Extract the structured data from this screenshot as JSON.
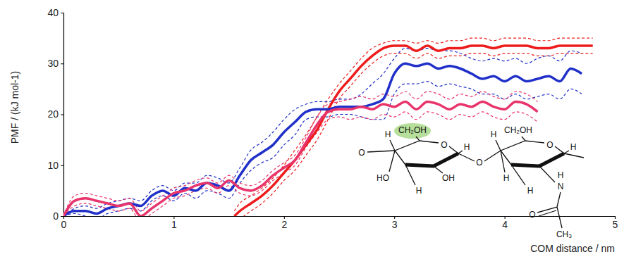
{
  "chart_data": {
    "type": "line",
    "xlabel": "COM distance / nm",
    "ylabel": "PMF / (kJ mol-1)",
    "xlim": [
      0,
      5
    ],
    "ylim": [
      0,
      40
    ],
    "xticks": [
      0,
      1,
      2,
      3,
      4,
      5
    ],
    "yticks": [
      0,
      10,
      20,
      30,
      40
    ],
    "grid": false,
    "series": [
      {
        "color": "#ee1c1c",
        "line_style": "solid",
        "x": [
          1.55,
          1.6,
          1.7,
          1.8,
          1.9,
          2.0,
          2.1,
          2.2,
          2.3,
          2.4,
          2.5,
          2.6,
          2.7,
          2.8,
          2.9,
          3.0,
          3.1,
          3.2,
          3.3,
          3.4,
          3.5,
          3.6,
          3.7,
          3.8,
          3.9,
          4.0,
          4.1,
          4.2,
          4.3,
          4.4,
          4.5,
          4.6,
          4.7,
          4.8
        ],
        "values": [
          0,
          1,
          2.5,
          4,
          6,
          8.5,
          11,
          14,
          17,
          21,
          24.5,
          27,
          29.5,
          31.5,
          33,
          33.5,
          33.5,
          32.5,
          33.5,
          32.5,
          33,
          33,
          33.5,
          33.5,
          33,
          33.5,
          33.5,
          33.5,
          33,
          33,
          33.5,
          33.5,
          33.5,
          33.5
        ],
        "upper": [
          1,
          2.5,
          4,
          5.5,
          7.5,
          10,
          13,
          16,
          19.5,
          23,
          26,
          28.5,
          31,
          33,
          34,
          34.5,
          34.5,
          34,
          34.5,
          34,
          34.5,
          34.5,
          35,
          35,
          34.5,
          35,
          35,
          35,
          34.5,
          34.5,
          35,
          35,
          35,
          35
        ],
        "lower": [
          -1,
          -0.5,
          1,
          2.5,
          4.5,
          7,
          9,
          12,
          15,
          19,
          23,
          25.5,
          28,
          30,
          31.5,
          32,
          32,
          31,
          32,
          31,
          31.5,
          31.5,
          32,
          32,
          31.5,
          32,
          32,
          32,
          31.5,
          31.5,
          32,
          32,
          32,
          32
        ]
      },
      {
        "color": "#2030c8",
        "line_style": "solid",
        "x": [
          0,
          0.1,
          0.2,
          0.3,
          0.4,
          0.5,
          0.6,
          0.7,
          0.8,
          0.9,
          1.0,
          1.1,
          1.2,
          1.3,
          1.4,
          1.5,
          1.6,
          1.7,
          1.8,
          1.9,
          2.0,
          2.1,
          2.2,
          2.3,
          2.4,
          2.5,
          2.6,
          2.7,
          2.8,
          2.9,
          3.0,
          3.1,
          3.2,
          3.3,
          3.4,
          3.5,
          3.6,
          3.7,
          3.8,
          3.9,
          4.0,
          4.1,
          4.2,
          4.3,
          4.4,
          4.5,
          4.6,
          4.7
        ],
        "values": [
          0,
          1,
          1,
          0.5,
          1.5,
          2,
          2.5,
          2,
          4,
          5,
          4,
          5.5,
          5,
          6.5,
          6,
          5,
          8,
          11,
          12.5,
          14,
          16.5,
          18.5,
          20.5,
          21,
          21,
          21.5,
          21.5,
          21.5,
          22,
          23,
          28,
          30,
          29.5,
          30,
          29,
          29.5,
          29,
          28,
          27,
          27.5,
          26.5,
          27.5,
          26.5,
          27,
          27.5,
          26.5,
          29,
          28
        ],
        "upper": [
          0,
          1.5,
          2,
          1.5,
          2.5,
          3,
          3.5,
          3,
          5,
          6,
          5,
          6.5,
          6.5,
          8,
          7.5,
          6.5,
          9.5,
          13,
          14.5,
          16.5,
          19,
          21,
          22,
          22.5,
          22.5,
          23,
          23,
          24,
          26,
          28,
          31,
          33,
          32.5,
          33,
          32.5,
          32.5,
          32,
          31,
          30.5,
          31,
          30.5,
          31,
          30,
          31,
          31.5,
          30.5,
          32.5,
          32
        ],
        "lower": [
          0,
          0.5,
          0,
          -0.5,
          0.5,
          1,
          1.5,
          1,
          3,
          4,
          3,
          4.5,
          3.5,
          5,
          4.5,
          3.5,
          6.5,
          9,
          10.5,
          11.5,
          14,
          16,
          19,
          19.5,
          19.5,
          20,
          20,
          19.5,
          19,
          19,
          24,
          26,
          26,
          26.5,
          25.5,
          26,
          25.5,
          25,
          24,
          24,
          23,
          24,
          23,
          23.5,
          24,
          23,
          25,
          24
        ]
      },
      {
        "color": "#e8336b",
        "line_style": "solid",
        "x": [
          0,
          0.1,
          0.2,
          0.3,
          0.4,
          0.5,
          0.6,
          0.7,
          0.8,
          0.9,
          1.0,
          1.1,
          1.2,
          1.3,
          1.4,
          1.5,
          1.6,
          1.7,
          1.8,
          1.9,
          2.0,
          2.1,
          2.2,
          2.3,
          2.4,
          2.5,
          2.6,
          2.7,
          2.8,
          2.9,
          3.0,
          3.1,
          3.2,
          3.3,
          3.4,
          3.5,
          3.6,
          3.7,
          3.8,
          3.9,
          4.0,
          4.1,
          4.2,
          4.3
        ],
        "values": [
          0,
          3,
          3.5,
          3,
          2.5,
          2,
          2.5,
          0,
          1.5,
          3,
          4.5,
          5,
          6,
          6.5,
          5.5,
          7,
          5.5,
          5,
          6,
          8,
          9.5,
          11,
          14.5,
          18,
          20.5,
          21,
          21,
          21.5,
          21,
          22,
          21.5,
          22.5,
          21,
          22.5,
          22,
          21,
          22,
          21.5,
          22.5,
          21.5,
          21,
          22.5,
          22,
          20.5
        ],
        "upper": [
          0,
          4,
          4.5,
          4,
          3.5,
          3,
          3.5,
          1,
          2.5,
          4,
          5.5,
          6,
          7,
          7.5,
          6.5,
          8,
          6.5,
          6,
          7,
          9,
          10.5,
          12,
          15.5,
          19.5,
          22,
          22.5,
          23,
          23.5,
          23,
          24,
          23.5,
          24.5,
          23,
          24.5,
          24,
          23,
          24,
          23.5,
          24.5,
          23.5,
          23,
          24.5,
          24,
          22.5
        ],
        "lower": [
          0,
          2,
          2.5,
          2,
          1.5,
          1,
          1.5,
          -1,
          0.5,
          2,
          3.5,
          4,
          5,
          5.5,
          4.5,
          6,
          4.5,
          4,
          5,
          7,
          8.5,
          10,
          13.5,
          16.5,
          19,
          19.5,
          19,
          19.5,
          19,
          20,
          19.5,
          20.5,
          19,
          20.5,
          20,
          19,
          20,
          19.5,
          20.5,
          19.5,
          19,
          20.5,
          20,
          18.5
        ]
      }
    ],
    "annotations": [
      "O",
      "H",
      "CH₂OH",
      "O",
      "H",
      "HO",
      "OH",
      "H",
      "O",
      "H",
      "CH₂OH",
      "O",
      "H",
      "H",
      "H",
      "H",
      "N",
      "O",
      "CH₃"
    ]
  }
}
